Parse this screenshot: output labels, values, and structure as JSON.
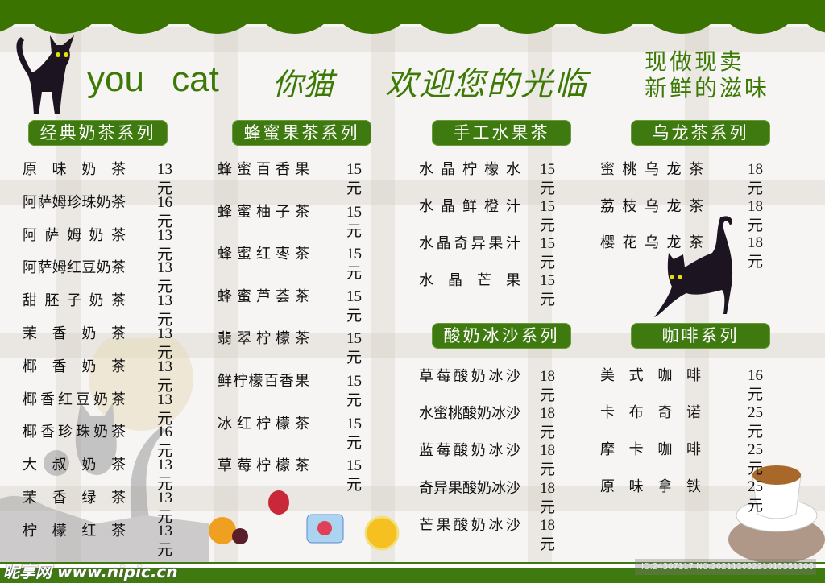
{
  "header": {
    "brand_en": "you cat",
    "brand_cn": "你猫",
    "welcome": "欢迎您的光临",
    "slogan_line1": "现做现卖",
    "slogan_line2": "新鲜的滋味"
  },
  "colors": {
    "brand_green": "#3a7300"
  },
  "sections": [
    {
      "title": "经典奶茶系列",
      "items": [
        {
          "name": "原味奶茶",
          "price": "13元"
        },
        {
          "name": "阿萨姆珍珠奶茶",
          "price": "16元"
        },
        {
          "name": "阿萨姆奶茶",
          "price": "13元"
        },
        {
          "name": "阿萨姆红豆奶茶",
          "price": "13元"
        },
        {
          "name": "甜胚子奶茶",
          "price": "13元"
        },
        {
          "name": "茉香奶茶",
          "price": "13元"
        },
        {
          "name": "椰香奶茶",
          "price": "13元"
        },
        {
          "name": "椰香红豆奶茶",
          "price": "13元"
        },
        {
          "name": "椰香珍珠奶茶",
          "price": "16元"
        },
        {
          "name": "大叔奶茶",
          "price": "13元"
        },
        {
          "name": "茉香绿茶",
          "price": "13元"
        },
        {
          "name": "柠檬红茶",
          "price": "13元"
        }
      ]
    },
    {
      "title": "蜂蜜果茶系列",
      "items": [
        {
          "name": "蜂蜜百香果",
          "price": "15元"
        },
        {
          "name": "蜂蜜柚子茶",
          "price": "15元"
        },
        {
          "name": "蜂蜜红枣茶",
          "price": "15元"
        },
        {
          "name": "蜂蜜芦荟茶",
          "price": "15元"
        },
        {
          "name": "翡翠柠檬茶",
          "price": "15元"
        },
        {
          "name": "鲜柠檬百香果",
          "price": "15元"
        },
        {
          "name": "冰红柠檬茶",
          "price": "15元"
        },
        {
          "name": "草莓柠檬茶",
          "price": "15元"
        }
      ]
    },
    {
      "title": "手工水果茶",
      "items": [
        {
          "name": "水晶柠檬水",
          "price": "15元"
        },
        {
          "name": "水晶鲜橙汁",
          "price": "15元"
        },
        {
          "name": "水晶奇异果汁",
          "price": "15元"
        },
        {
          "name": "水晶芒果",
          "price": "15元"
        }
      ]
    },
    {
      "title": "乌龙茶系列",
      "items": [
        {
          "name": "蜜桃乌龙茶",
          "price": "18元"
        },
        {
          "name": "荔枝乌龙茶",
          "price": "18元"
        },
        {
          "name": "樱花乌龙茶",
          "price": "18元"
        }
      ]
    },
    {
      "title": "酸奶冰沙系列",
      "items": [
        {
          "name": "草莓酸奶冰沙",
          "price": "18元"
        },
        {
          "name": "水蜜桃酸奶冰沙",
          "price": "18元"
        },
        {
          "name": "蓝莓酸奶冰沙",
          "price": "18元"
        },
        {
          "name": "奇异果酸奶冰沙",
          "price": "18元"
        },
        {
          "name": "芒果酸奶冰沙",
          "price": "18元"
        }
      ]
    },
    {
      "title": "咖啡系列",
      "items": [
        {
          "name": "美式咖啡",
          "price": "16元"
        },
        {
          "name": "卡布奇诺",
          "price": "25元"
        },
        {
          "name": "摩卡咖啡",
          "price": "25元"
        },
        {
          "name": "原味拿铁",
          "price": "25元"
        }
      ]
    }
  ],
  "watermark": {
    "site": "昵享网 www.nipic.cn",
    "id": "ID:24307117 NO:20211203221015351106"
  }
}
